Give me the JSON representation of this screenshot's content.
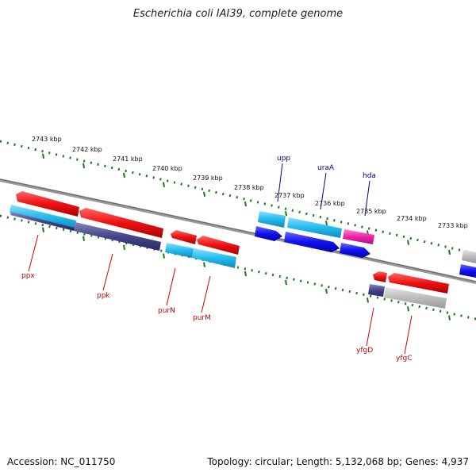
{
  "title": "Escherichia coli IAI39, complete genome",
  "footer": {
    "accession": "Accession: NC_011750",
    "stats": "Topology: circular; Length: 5,132,068 bp; Genes: 4,937"
  },
  "colors": {
    "strand_line": "#888888",
    "tick_green": "#1a7a1a",
    "gene_red": "#ee1111",
    "gene_cyan": "#22bbee",
    "gene_blue": "#1111ee",
    "gene_navy": "#44448a",
    "gene_magenta": "#ee22aa",
    "gene_grey": "#bbbbbb"
  },
  "ticks": [
    {
      "label": "2743 kbp"
    },
    {
      "label": "2742 kbp"
    },
    {
      "label": "2741 kbp"
    },
    {
      "label": "2740 kbp"
    },
    {
      "label": "2739 kbp"
    },
    {
      "label": "2738 kbp"
    },
    {
      "label": "2737 kbp"
    },
    {
      "label": "2736 kbp"
    },
    {
      "label": "2735 kbp"
    },
    {
      "label": "2734 kbp"
    },
    {
      "label": "2733 kbp"
    }
  ],
  "gene_labels": [
    {
      "name": "upp",
      "color": "blue"
    },
    {
      "name": "uraA",
      "color": "blue"
    },
    {
      "name": "hda",
      "color": "blue"
    },
    {
      "name": "ppx",
      "color": "red"
    },
    {
      "name": "ppk",
      "color": "red"
    },
    {
      "name": "purN",
      "color": "red"
    },
    {
      "name": "purM",
      "color": "red"
    },
    {
      "name": "yfgD",
      "color": "red"
    },
    {
      "name": "yfgC",
      "color": "red"
    }
  ]
}
